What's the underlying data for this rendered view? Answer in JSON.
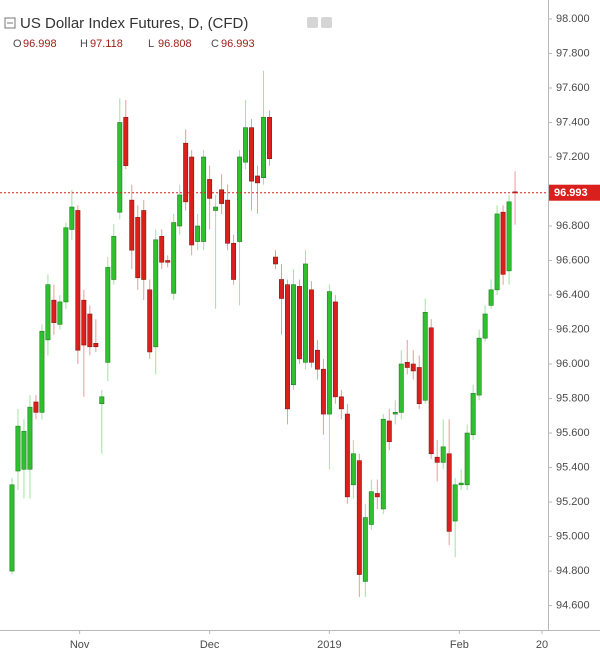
{
  "chart_data": {
    "type": "candlestick",
    "title": "US Dollar Index Futures, D, (CFD)",
    "legend": {
      "labels": [
        "O",
        "H",
        "L",
        "C"
      ]
    },
    "open": [
      94.8,
      95.38,
      95.39,
      95.39,
      95.78,
      95.72,
      96.14,
      96.37,
      96.23,
      96.36,
      96.78,
      96.89,
      96.37,
      96.29,
      96.12,
      95.77,
      96.01,
      96.49,
      96.88,
      97.43,
      96.95,
      96.85,
      96.89,
      96.43,
      96.1,
      96.74,
      96.6,
      96.41,
      96.8,
      97.28,
      97.2,
      96.71,
      96.71,
      97.07,
      96.89,
      97.01,
      96.95,
      96.7,
      96.71,
      97.17,
      97.37,
      97.09,
      97.08,
      97.43,
      96.62,
      96.49,
      96.46,
      95.88,
      96.45,
      96.01,
      96.43,
      96.08,
      95.97,
      95.71,
      96.36,
      95.81,
      95.71,
      95.3,
      95.44,
      94.74,
      95.07,
      95.25,
      95.16,
      95.67,
      95.71,
      95.72,
      96.01,
      96.0,
      95.98,
      95.79,
      96.21,
      95.46,
      95.43,
      95.48,
      95.09,
      95.3,
      95.3,
      95.59,
      95.82,
      96.15,
      96.34,
      96.43,
      96.88,
      96.54,
      96.998
    ],
    "high": [
      95.34,
      95.74,
      95.68,
      95.82,
      95.82,
      96.23,
      96.52,
      96.46,
      96.4,
      96.82,
      97.01,
      96.92,
      96.43,
      96.34,
      96.26,
      95.85,
      96.62,
      96.81,
      97.54,
      97.53,
      97.04,
      96.92,
      96.95,
      96.49,
      96.78,
      96.78,
      96.63,
      96.87,
      97.04,
      97.36,
      97.24,
      96.87,
      97.24,
      97.15,
      96.98,
      97.1,
      97.04,
      96.75,
      97.24,
      97.53,
      97.42,
      97.15,
      97.7,
      97.47,
      96.66,
      96.58,
      96.49,
      96.55,
      96.49,
      96.66,
      96.48,
      96.14,
      96.03,
      96.46,
      96.4,
      95.85,
      95.77,
      95.56,
      95.48,
      95.19,
      95.33,
      95.33,
      95.71,
      95.74,
      95.79,
      96.08,
      96.14,
      96.08,
      96.05,
      96.38,
      96.26,
      95.56,
      95.68,
      95.68,
      95.34,
      95.39,
      95.65,
      95.88,
      96.2,
      96.34,
      96.49,
      96.92,
      96.92,
      96.98,
      97.118
    ],
    "low": [
      94.78,
      95.27,
      95.22,
      95.22,
      95.68,
      95.68,
      96.05,
      96.17,
      96.2,
      96.32,
      96.72,
      96.0,
      95.81,
      96.05,
      96.07,
      95.48,
      95.9,
      96.46,
      96.84,
      97.13,
      96.55,
      96.43,
      96.37,
      96.03,
      95.94,
      96.55,
      96.56,
      96.37,
      96.75,
      96.89,
      96.63,
      96.66,
      96.66,
      96.78,
      96.32,
      96.87,
      96.66,
      96.46,
      96.34,
      97.13,
      96.89,
      96.87,
      97.04,
      97.15,
      96.55,
      96.17,
      95.65,
      95.85,
      96.0,
      95.97,
      95.98,
      95.91,
      95.59,
      95.39,
      95.77,
      95.68,
      95.19,
      95.22,
      94.65,
      94.65,
      95.04,
      95.16,
      95.13,
      95.5,
      95.65,
      95.68,
      95.94,
      95.91,
      95.74,
      95.77,
      95.45,
      95.32,
      95.39,
      94.95,
      94.88,
      95.27,
      95.27,
      95.56,
      95.79,
      96.13,
      96.32,
      96.4,
      96.46,
      96.46,
      96.808
    ],
    "close": [
      95.3,
      95.64,
      95.61,
      95.75,
      95.72,
      96.19,
      96.46,
      96.24,
      96.36,
      96.79,
      96.91,
      96.08,
      96.11,
      96.1,
      96.1,
      95.81,
      96.56,
      96.74,
      97.4,
      97.15,
      96.66,
      96.5,
      96.49,
      96.07,
      96.72,
      96.59,
      96.59,
      96.82,
      96.98,
      96.94,
      96.69,
      96.8,
      97.2,
      96.96,
      96.91,
      96.93,
      96.7,
      96.49,
      97.2,
      97.37,
      97.06,
      97.05,
      97.43,
      97.19,
      96.58,
      96.38,
      95.74,
      96.46,
      96.03,
      96.58,
      96.01,
      95.97,
      95.71,
      96.42,
      95.81,
      95.74,
      95.23,
      95.48,
      94.78,
      95.11,
      95.26,
      95.23,
      95.68,
      95.55,
      95.72,
      96.0,
      95.98,
      95.96,
      95.77,
      96.3,
      95.48,
      95.43,
      95.52,
      95.03,
      95.3,
      95.31,
      95.6,
      95.83,
      96.15,
      96.29,
      96.43,
      96.87,
      96.52,
      96.94,
      96.993
    ],
    "up_color": "#2fbf2f",
    "down_color": "#d9201c",
    "xlim": [
      -2,
      89.5
    ],
    "xticks": [
      {
        "value": 11.3,
        "label": "Nov"
      },
      {
        "value": 33,
        "label": "Dec"
      },
      {
        "value": 53,
        "label": "2019"
      },
      {
        "value": 74.7,
        "label": "Feb"
      },
      {
        "value": 88.5,
        "label": "20"
      }
    ],
    "ylim": [
      94.47,
      98.11
    ],
    "yticks": [
      {
        "value": 94.6,
        "label": "94.600"
      },
      {
        "value": 94.8,
        "label": "94.800"
      },
      {
        "value": 95.0,
        "label": "95.000"
      },
      {
        "value": 95.2,
        "label": "95.200"
      },
      {
        "value": 95.4,
        "label": "95.400"
      },
      {
        "value": 95.6,
        "label": "95.600"
      },
      {
        "value": 95.8,
        "label": "95.800"
      },
      {
        "value": 96.0,
        "label": "96.000"
      },
      {
        "value": 96.2,
        "label": "96.200"
      },
      {
        "value": 96.4,
        "label": "96.400"
      },
      {
        "value": 96.6,
        "label": "96.600"
      },
      {
        "value": 96.8,
        "label": "96.800"
      },
      {
        "value": 97.0,
        "label": "97.000"
      },
      {
        "value": 97.2,
        "label": "97.200"
      },
      {
        "value": 97.4,
        "label": "97.400"
      },
      {
        "value": 97.6,
        "label": "97.600"
      },
      {
        "value": 97.8,
        "label": "97.800"
      },
      {
        "value": 98.0,
        "label": "98.000"
      }
    ],
    "grid": false
  }
}
